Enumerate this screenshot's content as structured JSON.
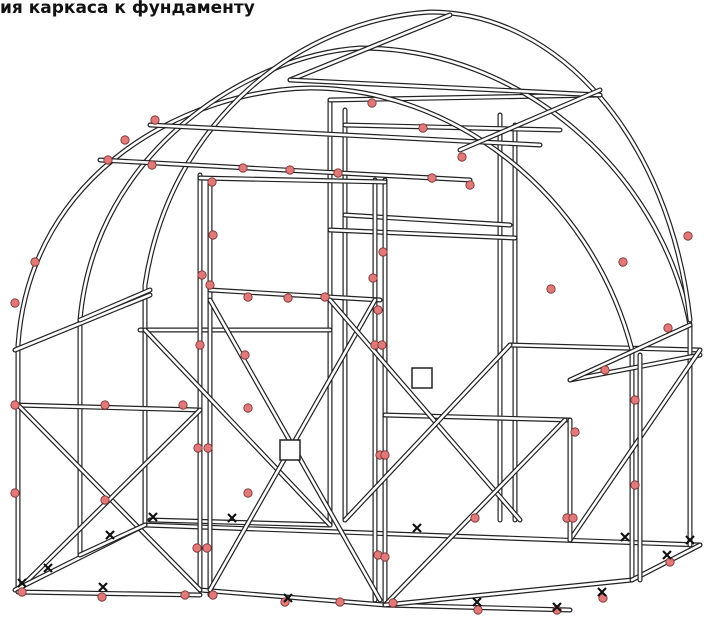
{
  "header": {
    "title": "ия каркаса к фундаменту"
  }
}
